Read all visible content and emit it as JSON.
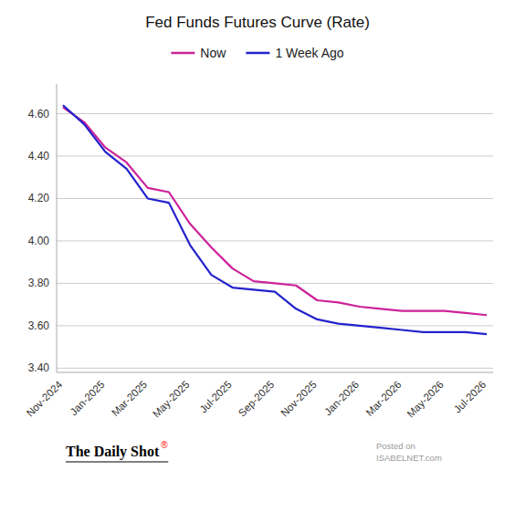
{
  "chart_data": {
    "type": "line",
    "title": "Fed Funds Futures Curve (Rate)",
    "categories": [
      "Nov-2024",
      null,
      "Jan-2025",
      null,
      "Mar-2025",
      null,
      "May-2025",
      null,
      "Jul-2025",
      null,
      "Sep-2025",
      null,
      "Nov-2025",
      null,
      "Jan-2026",
      null,
      "Mar-2026",
      null,
      "May-2026",
      null,
      "Jul-2026"
    ],
    "series": [
      {
        "name": "Now",
        "color": "#cc2299",
        "values": [
          4.63,
          4.56,
          4.44,
          4.37,
          4.25,
          4.23,
          4.08,
          3.97,
          3.87,
          3.81,
          3.8,
          3.79,
          3.72,
          3.71,
          3.69,
          3.68,
          3.67,
          3.67,
          3.67,
          3.66,
          3.65
        ]
      },
      {
        "name": "1 Week Ago",
        "color": "#2222cc",
        "values": [
          4.64,
          4.55,
          4.42,
          4.34,
          4.2,
          4.18,
          3.98,
          3.84,
          3.78,
          3.77,
          3.76,
          3.68,
          3.63,
          3.61,
          3.6,
          3.59,
          3.58,
          3.57,
          3.57,
          3.57,
          3.56
        ]
      }
    ],
    "ylim": [
      3.38,
      4.74
    ],
    "yticks": [
      {
        "value": 3.4,
        "label": "3.40"
      },
      {
        "value": 3.6,
        "label": "3.60"
      },
      {
        "value": 3.8,
        "label": "3.80"
      },
      {
        "value": 4.0,
        "label": "4.00"
      },
      {
        "value": 4.2,
        "label": "4.20"
      },
      {
        "value": 4.4,
        "label": "4.40"
      },
      {
        "value": 4.6,
        "label": "4.60"
      }
    ],
    "grid": true,
    "legend": "top",
    "annotations": [
      "The Daily Shot",
      "®",
      "Posted on",
      "ISABELNET.com"
    ]
  }
}
